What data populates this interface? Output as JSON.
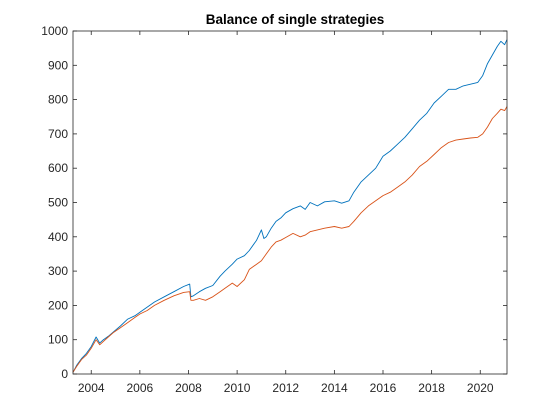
{
  "chart_data": {
    "type": "line",
    "title": "Balance of single strategies",
    "xlabel": "",
    "ylabel": "",
    "xlim": [
      2003.25,
      2021.1
    ],
    "ylim": [
      0,
      1000
    ],
    "xticks": [
      2004,
      2006,
      2008,
      2010,
      2012,
      2014,
      2016,
      2018,
      2020
    ],
    "yticks": [
      0,
      100,
      200,
      300,
      400,
      500,
      600,
      700,
      800,
      900,
      1000
    ],
    "grid": false,
    "legend": "none",
    "series": [
      {
        "color": "#0072BD",
        "x": [
          2003.25,
          2003.4,
          2003.6,
          2003.8,
          2004.0,
          2004.2,
          2004.35,
          2004.5,
          2004.7,
          2004.9,
          2005.2,
          2005.5,
          2005.8,
          2006.0,
          2006.3,
          2006.6,
          2007.0,
          2007.4,
          2007.8,
          2008.05,
          2008.1,
          2008.2,
          2008.45,
          2008.7,
          2009.0,
          2009.3,
          2009.5,
          2009.8,
          2010.0,
          2010.3,
          2010.5,
          2010.8,
          2011.0,
          2011.1,
          2011.2,
          2011.4,
          2011.6,
          2011.8,
          2012.0,
          2012.3,
          2012.6,
          2012.8,
          2013.0,
          2013.3,
          2013.6,
          2014.0,
          2014.3,
          2014.6,
          2014.8,
          2015.1,
          2015.4,
          2015.7,
          2016.0,
          2016.3,
          2016.6,
          2016.9,
          2017.2,
          2017.5,
          2017.8,
          2018.1,
          2018.4,
          2018.7,
          2019.0,
          2019.3,
          2019.6,
          2019.9,
          2020.1,
          2020.3,
          2020.5,
          2020.7,
          2020.85,
          2021.0,
          2021.1
        ],
        "values": [
          5,
          25,
          45,
          60,
          80,
          108,
          90,
          100,
          110,
          122,
          140,
          160,
          170,
          180,
          195,
          210,
          225,
          240,
          255,
          262,
          225,
          228,
          240,
          250,
          258,
          285,
          300,
          320,
          335,
          345,
          360,
          390,
          420,
          395,
          400,
          425,
          445,
          455,
          470,
          482,
          490,
          480,
          500,
          490,
          502,
          505,
          498,
          505,
          530,
          560,
          580,
          600,
          635,
          650,
          670,
          690,
          715,
          740,
          760,
          790,
          810,
          830,
          830,
          840,
          845,
          850,
          870,
          905,
          930,
          955,
          970,
          960,
          975
        ]
      },
      {
        "color": "#D95319",
        "x": [
          2003.25,
          2003.4,
          2003.6,
          2003.8,
          2004.0,
          2004.2,
          2004.35,
          2004.5,
          2004.7,
          2004.9,
          2005.2,
          2005.5,
          2005.8,
          2006.0,
          2006.3,
          2006.6,
          2007.0,
          2007.4,
          2007.8,
          2008.05,
          2008.1,
          2008.2,
          2008.45,
          2008.7,
          2009.0,
          2009.3,
          2009.5,
          2009.8,
          2010.0,
          2010.3,
          2010.5,
          2010.8,
          2011.0,
          2011.2,
          2011.4,
          2011.6,
          2011.8,
          2012.0,
          2012.3,
          2012.6,
          2012.8,
          2013.0,
          2013.3,
          2013.6,
          2014.0,
          2014.3,
          2014.6,
          2014.8,
          2015.1,
          2015.4,
          2015.7,
          2016.0,
          2016.3,
          2016.6,
          2016.9,
          2017.2,
          2017.5,
          2017.8,
          2018.1,
          2018.4,
          2018.7,
          2019.0,
          2019.3,
          2019.6,
          2019.9,
          2020.1,
          2020.3,
          2020.5,
          2020.7,
          2020.85,
          2021.0,
          2021.1
        ],
        "values": [
          5,
          22,
          42,
          55,
          75,
          100,
          85,
          95,
          108,
          120,
          135,
          150,
          165,
          175,
          185,
          200,
          215,
          228,
          238,
          240,
          215,
          215,
          220,
          215,
          225,
          240,
          250,
          265,
          255,
          275,
          305,
          320,
          330,
          350,
          370,
          385,
          390,
          398,
          410,
          400,
          405,
          415,
          420,
          425,
          430,
          425,
          430,
          445,
          470,
          490,
          505,
          520,
          530,
          545,
          560,
          580,
          605,
          620,
          640,
          660,
          675,
          682,
          685,
          688,
          690,
          700,
          720,
          745,
          760,
          772,
          768,
          780
        ]
      }
    ]
  }
}
